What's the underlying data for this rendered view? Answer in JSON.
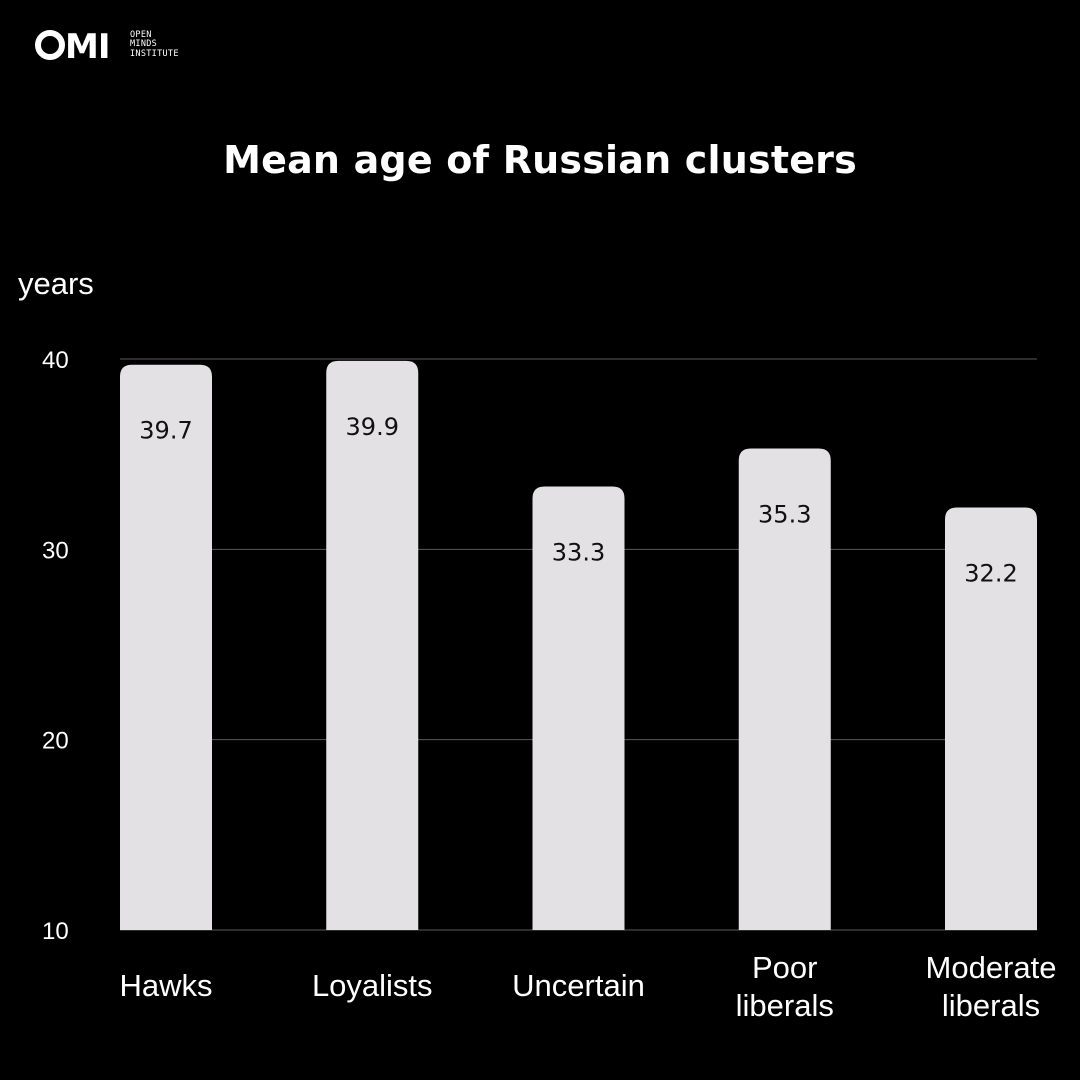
{
  "logo": {
    "mark": "OMI",
    "lines": [
      "OPEN",
      "MINDS",
      "INSTITUTE"
    ]
  },
  "colors": {
    "background": "#000000",
    "bar": "#e3e1e3",
    "grid": "#5a5a5a",
    "text": "#ffffff",
    "value_text": "#111111"
  },
  "chart_data": {
    "type": "bar",
    "title": "Mean age of Russian clusters",
    "ylabel": "years",
    "xlabel": "",
    "categories": [
      [
        "Hawks"
      ],
      [
        "Loyalists"
      ],
      [
        "Uncertain"
      ],
      [
        "Poor",
        "liberals"
      ],
      [
        "Moderate",
        "liberals"
      ]
    ],
    "values": [
      39.7,
      39.9,
      33.3,
      35.3,
      32.2
    ],
    "value_labels": [
      "39.7",
      "39.9",
      "33.3",
      "35.3",
      "32.2"
    ],
    "ylim": [
      10,
      40
    ],
    "yticks": [
      10,
      20,
      30,
      40
    ],
    "grid": true,
    "legend": "none"
  }
}
